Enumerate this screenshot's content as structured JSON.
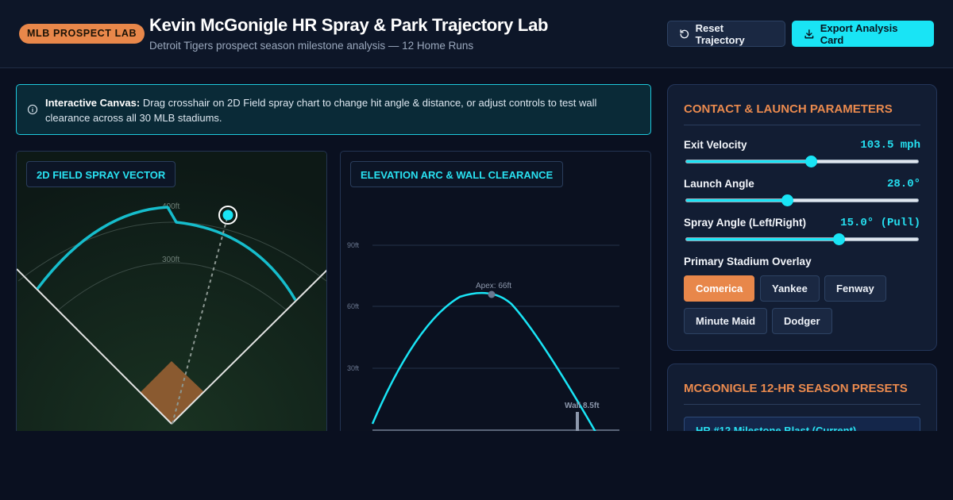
{
  "header": {
    "badge": "MLB PROSPECT LAB",
    "title": "Kevin McGonigle HR Spray & Park Trajectory Lab",
    "subtitle": "Detroit Tigers prospect season milestone analysis — 12 Home Runs",
    "reset_label": "Reset Trajectory",
    "export_label": "Export Analysis Card"
  },
  "info": {
    "lead": "Interactive Canvas:",
    "text": " Drag crosshair on 2D Field spray chart to change hit angle & distance, or adjust controls to test wall clearance across all 30 MLB stadiums."
  },
  "field_panel": {
    "label": "2D FIELD SPRAY VECTOR",
    "distance_labels": [
      "400ft",
      "300ft"
    ]
  },
  "elevation_panel": {
    "label": "ELEVATION ARC & WALL CLEARANCE",
    "y_ticks": [
      "90ft",
      "60ft",
      "30ft"
    ],
    "apex_label": "Apex: 66ft",
    "wall_label": "Wall 8.5ft"
  },
  "params": {
    "title": "CONTACT & LAUNCH PARAMETERS",
    "items": [
      {
        "name": "Exit Velocity",
        "value": "103.5 mph",
        "level": 0.54
      },
      {
        "name": "Launch Angle",
        "value": "28.0°",
        "level": 0.44
      },
      {
        "name": "Spray Angle (Left/Right)",
        "value": "15.0° (Pull)",
        "level": 0.66
      }
    ],
    "overlay_label": "Primary Stadium Overlay",
    "stadiums": [
      "Comerica",
      "Yankee",
      "Fenway",
      "Minute Maid",
      "Dodger"
    ],
    "active_stadium": "Comerica"
  },
  "presets": {
    "title": "MCGONIGLE 12-HR SEASON PRESETS",
    "items": [
      "HR #12 Milestone Blast (Current)"
    ]
  },
  "colors": {
    "accent_cyan": "#19e4f5",
    "accent_orange": "#e8874a",
    "infield": "#8a5a30"
  }
}
